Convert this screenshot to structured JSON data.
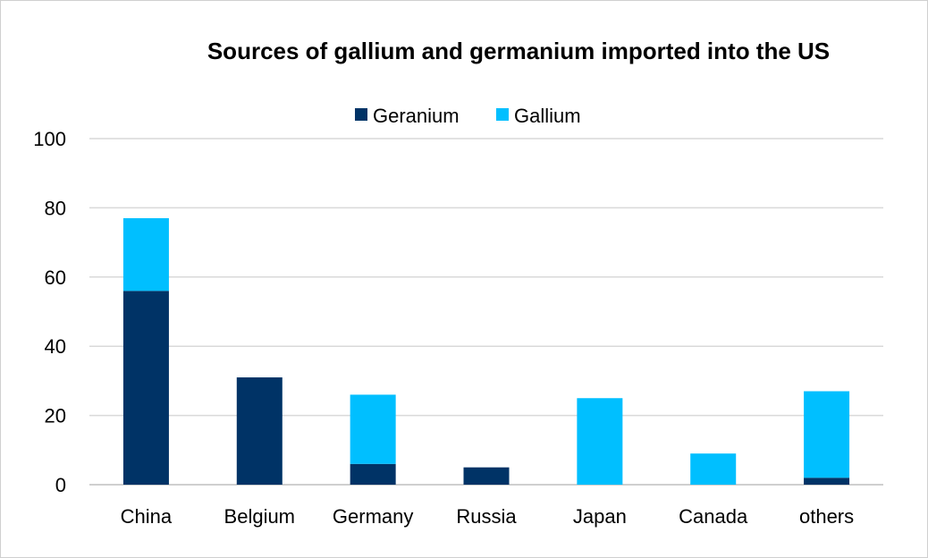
{
  "chart_data": {
    "type": "bar",
    "stacked": true,
    "title": "Sources of gallium and germanium imported into the US",
    "xlabel": "",
    "ylabel": "",
    "categories": [
      "China",
      "Belgium",
      "Germany",
      "Russia",
      "Japan",
      "Canada",
      "others"
    ],
    "series": [
      {
        "name": "Geranium",
        "color": "#003366",
        "values": [
          56,
          31,
          6,
          5,
          0,
          0,
          2
        ]
      },
      {
        "name": "Gallium",
        "color": "#00bfff",
        "values": [
          21,
          0,
          20,
          0,
          25,
          9,
          25
        ]
      }
    ],
    "ylim": [
      0,
      100
    ],
    "yticks": [
      0,
      20,
      40,
      60,
      80,
      100
    ],
    "grid": true,
    "legend_position": "top"
  }
}
